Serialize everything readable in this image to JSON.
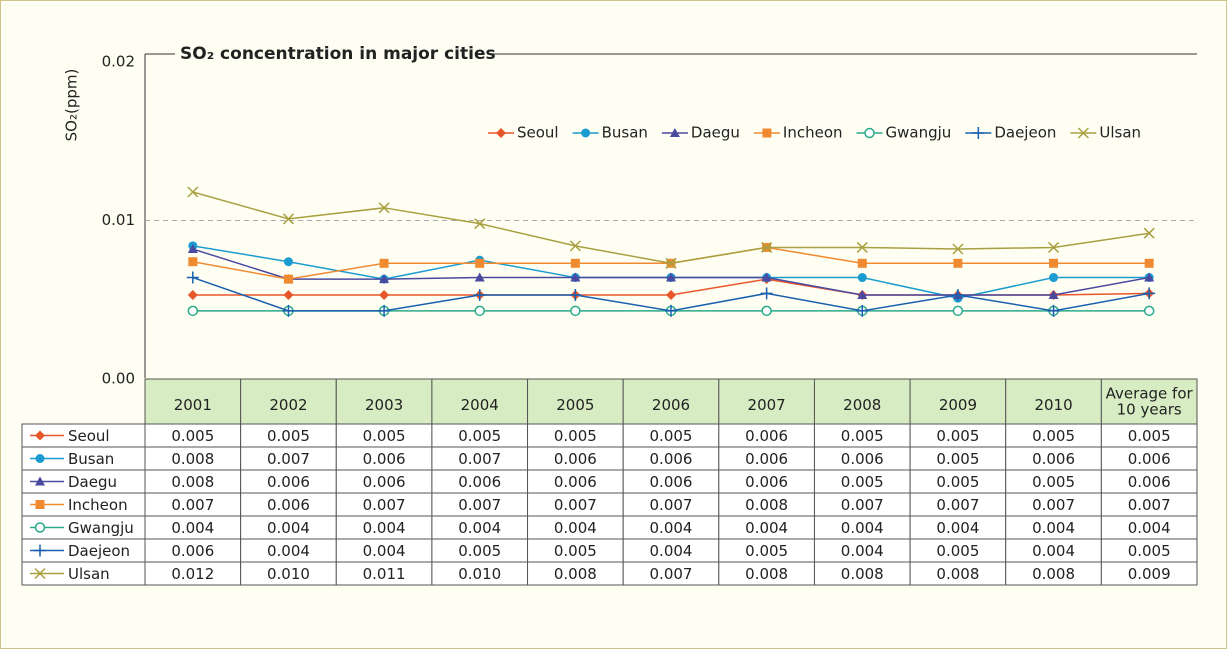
{
  "chart_data": {
    "type": "line",
    "title": "SO₂ concentration in major cities",
    "y_label": "SO₂(ppm)",
    "categories": [
      "2001",
      "2002",
      "2003",
      "2004",
      "2005",
      "2006",
      "2007",
      "2008",
      "2009",
      "2010",
      "Average for 10 years"
    ],
    "ylim": [
      0,
      0.02
    ],
    "yticks": [
      {
        "value": 0,
        "label": "0.00"
      },
      0.01,
      0.02
    ],
    "grid": true,
    "legend": "top-right",
    "series": [
      {
        "name": "Seoul",
        "color": "#e8572a",
        "marker": "diamond",
        "values": [
          0.0053,
          0.0053,
          0.0053,
          0.0053,
          0.0053,
          0.0053,
          0.0063,
          0.0053,
          0.0053,
          0.0053,
          0.0054
        ],
        "value_labels": [
          "0.005",
          "0.005",
          "0.005",
          "0.005",
          "0.005",
          "0.005",
          "0.006",
          "0.005",
          "0.005",
          "0.005",
          "0.005"
        ]
      },
      {
        "name": "Busan",
        "color": "#1a9cd0",
        "marker": "circle",
        "values": [
          0.0084,
          0.0074,
          0.0063,
          0.0075,
          0.0064,
          0.0064,
          0.0064,
          0.0064,
          0.0051,
          0.0064,
          0.0064
        ],
        "value_labels": [
          "0.008",
          "0.007",
          "0.006",
          "0.007",
          "0.006",
          "0.006",
          "0.006",
          "0.006",
          "0.005",
          "0.006",
          "0.006"
        ]
      },
      {
        "name": "Daegu",
        "color": "#4a4aa0",
        "marker": "triangle",
        "values": [
          0.0082,
          0.0063,
          0.0063,
          0.0064,
          0.0064,
          0.0064,
          0.0064,
          0.0053,
          0.0053,
          0.0053,
          0.0064
        ],
        "value_labels": [
          "0.008",
          "0.006",
          "0.006",
          "0.006",
          "0.006",
          "0.006",
          "0.006",
          "0.005",
          "0.005",
          "0.005",
          "0.006"
        ]
      },
      {
        "name": "Incheon",
        "color": "#f08a30",
        "marker": "square",
        "values": [
          0.0074,
          0.0063,
          0.0073,
          0.0073,
          0.0073,
          0.0073,
          0.0083,
          0.0073,
          0.0073,
          0.0073,
          0.0073
        ],
        "value_labels": [
          "0.007",
          "0.006",
          "0.007",
          "0.007",
          "0.007",
          "0.007",
          "0.008",
          "0.007",
          "0.007",
          "0.007",
          "0.007"
        ]
      },
      {
        "name": "Gwangju",
        "color": "#2aaa8a",
        "marker": "hollow-circle",
        "values": [
          0.0043,
          0.0043,
          0.0043,
          0.0043,
          0.0043,
          0.0043,
          0.0043,
          0.0043,
          0.0043,
          0.0043,
          0.0043
        ],
        "value_labels": [
          "0.004",
          "0.004",
          "0.004",
          "0.004",
          "0.004",
          "0.004",
          "0.004",
          "0.004",
          "0.004",
          "0.004",
          "0.004"
        ]
      },
      {
        "name": "Daejeon",
        "color": "#1a60b0",
        "marker": "plus",
        "values": [
          0.0064,
          0.0043,
          0.0043,
          0.0053,
          0.0053,
          0.0043,
          0.0054,
          0.0043,
          0.0053,
          0.0043,
          0.0054
        ],
        "value_labels": [
          "0.006",
          "0.004",
          "0.004",
          "0.005",
          "0.005",
          "0.004",
          "0.005",
          "0.004",
          "0.005",
          "0.004",
          "0.005"
        ]
      },
      {
        "name": "Ulsan",
        "color": "#a8a040",
        "marker": "x",
        "values": [
          0.0118,
          0.0101,
          0.0108,
          0.0098,
          0.0084,
          0.0073,
          0.0083,
          0.0083,
          0.0082,
          0.0083,
          0.0092
        ],
        "value_labels": [
          "0.012",
          "0.010",
          "0.011",
          "0.010",
          "0.008",
          "0.007",
          "0.008",
          "0.008",
          "0.008",
          "0.008",
          "0.009"
        ]
      }
    ]
  }
}
